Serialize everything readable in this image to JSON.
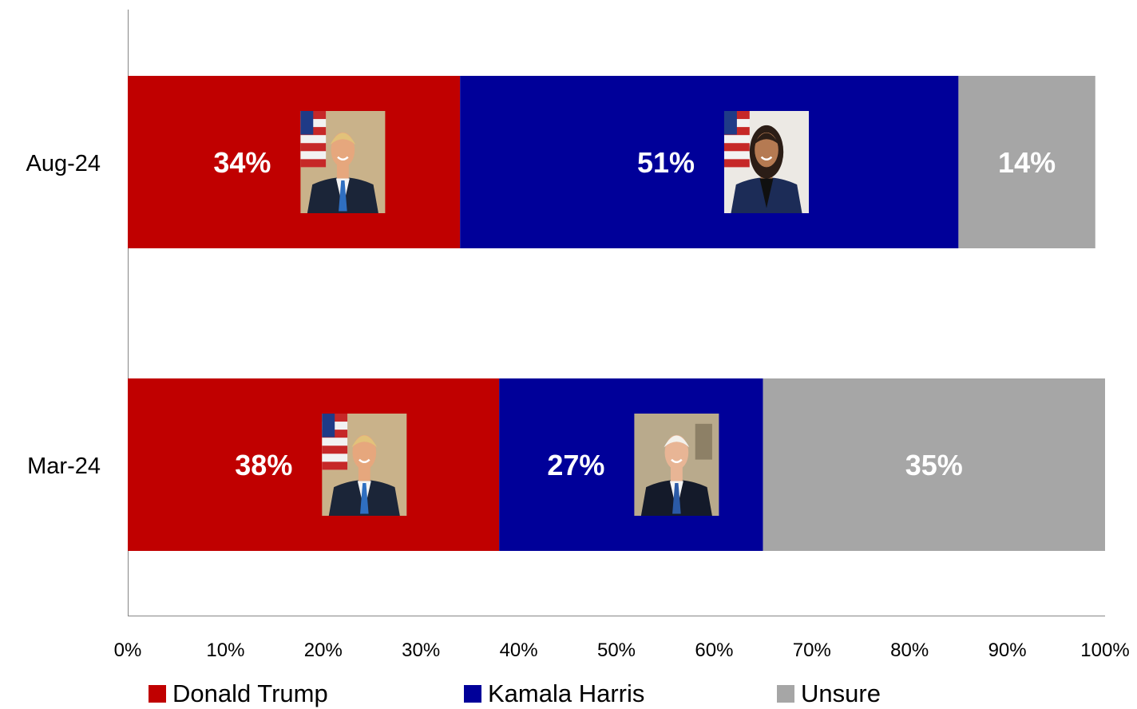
{
  "chart_data": {
    "type": "bar",
    "orientation": "horizontal",
    "stacked": true,
    "categories": [
      "Aug-24",
      "Mar-24"
    ],
    "series": [
      {
        "name": "Donald Trump",
        "values": [
          34,
          38
        ],
        "color": "#C00000",
        "images": [
          "trump-portrait",
          "trump-portrait"
        ]
      },
      {
        "name": "Kamala Harris",
        "values": [
          51,
          27
        ],
        "color": "#000099",
        "images": [
          "harris-portrait",
          "biden-portrait"
        ]
      },
      {
        "name": "Unsure",
        "values": [
          14,
          35
        ],
        "color": "#A6A6A6",
        "images": [
          null,
          null
        ]
      }
    ],
    "data_labels": [
      [
        "34%",
        "51%",
        "14%"
      ],
      [
        "38%",
        "27%",
        "35%"
      ]
    ],
    "x_ticks": [
      "0%",
      "10%",
      "20%",
      "30%",
      "40%",
      "50%",
      "60%",
      "70%",
      "80%",
      "90%",
      "100%"
    ],
    "xlim": [
      0,
      100
    ],
    "xlabel": "",
    "ylabel": "",
    "title": "",
    "grid": false,
    "legend_position": "bottom"
  }
}
